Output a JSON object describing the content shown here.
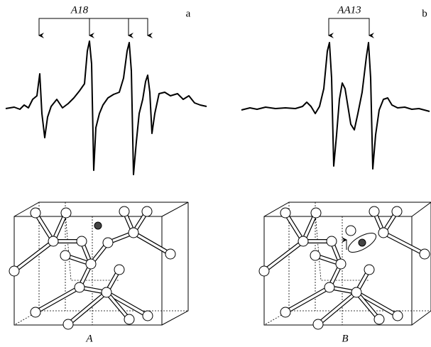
{
  "panels": [
    {
      "label": "a",
      "marker_label": "A18",
      "structure_label": "A"
    },
    {
      "label": "b",
      "marker_label": "AA13",
      "structure_label": "B"
    }
  ]
}
